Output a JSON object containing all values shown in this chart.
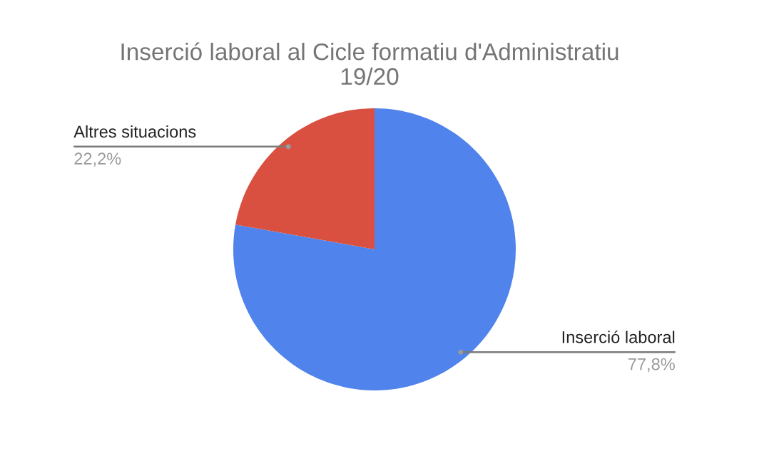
{
  "chart_data": {
    "type": "pie",
    "title": "Inserció laboral al Cicle formatiu d'Administratiu\n19/20",
    "categories": [
      "Inserció laboral",
      "Altres situacions"
    ],
    "values": [
      77.8,
      22.2
    ],
    "colors": [
      "#5083ec",
      "#d95040"
    ],
    "value_labels": [
      "77,8%",
      "22,2%"
    ],
    "legend": false
  }
}
